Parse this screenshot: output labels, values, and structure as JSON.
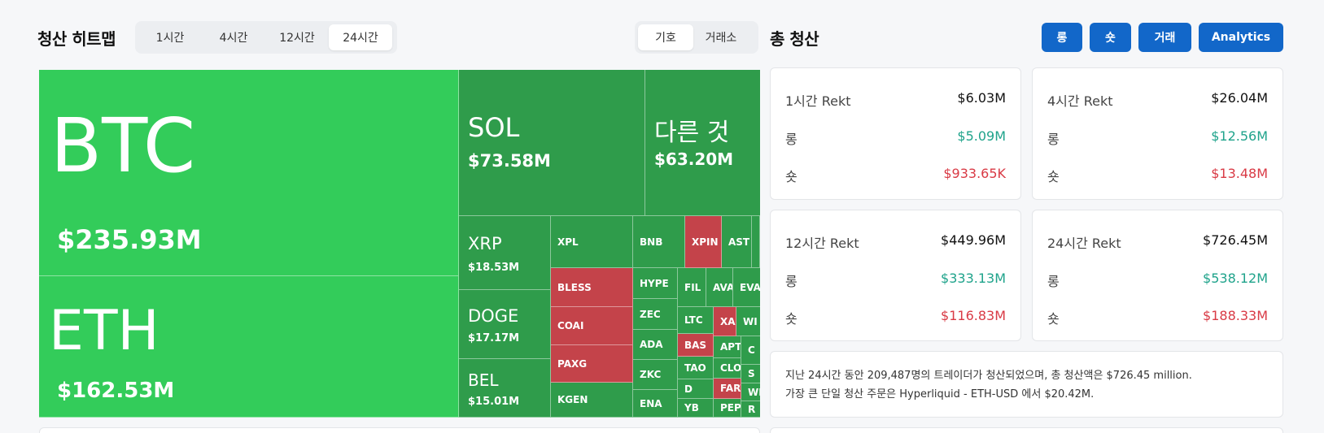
{
  "heatmap": {
    "title": "청산 히트맵",
    "time_options": [
      "1시간",
      "4시간",
      "12시간",
      "24시간"
    ],
    "kind_options": [
      "기호",
      "거래소"
    ]
  },
  "totals": {
    "title": "총 청산",
    "buttons": [
      "롱",
      "숏",
      "거래",
      "Analytics"
    ]
  },
  "tiles": {
    "btc": {
      "sym": "BTC",
      "val": "$235.93M"
    },
    "eth": {
      "sym": "ETH",
      "val": "$162.53M"
    },
    "sol": {
      "sym": "SOL",
      "val": "$73.58M"
    },
    "other": {
      "sym": "다른 것",
      "val": "$63.20M"
    },
    "xrp": {
      "sym": "XRP",
      "val": "$18.53M"
    },
    "doge": {
      "sym": "DOGE",
      "val": "$17.17M"
    },
    "bel": {
      "sym": "BEL",
      "val": "$15.01M"
    },
    "small": [
      "XPL",
      "BNB",
      "XPIN",
      "AST",
      "BLESS",
      "HYPE",
      "FIL",
      "AVA",
      "EVA",
      "COAI",
      "ZEC",
      "LTC",
      "XA",
      "WI",
      "PAXG",
      "ADA",
      "BAS",
      "APT",
      "C",
      "TAO",
      "CLO",
      "S",
      "FARTC",
      "WIF",
      "ZKC",
      "D",
      "KGEN",
      "ENA",
      "YB",
      "PEP",
      "R"
    ]
  },
  "cards": {
    "c1": {
      "title": "1시간 Rekt",
      "total": "$6.03M",
      "long_label": "롱",
      "long": "$5.09M",
      "short_label": "숏",
      "short": "$933.65K"
    },
    "c4": {
      "title": "4시간 Rekt",
      "total": "$26.04M",
      "long_label": "롱",
      "long": "$12.56M",
      "short_label": "숏",
      "short": "$13.48M"
    },
    "c12": {
      "title": "12시간 Rekt",
      "total": "$449.96M",
      "long_label": "롱",
      "long": "$333.13M",
      "short_label": "숏",
      "short": "$116.83M"
    },
    "c24": {
      "title": "24시간 Rekt",
      "total": "$726.45M",
      "long_label": "롱",
      "long": "$538.12M",
      "short_label": "숏",
      "short": "$188.33M"
    }
  },
  "summary": {
    "line1": "지난 24시간 동안 209,487명의 트레이더가 청산되었으며, 총 청산액은 $726.45 million.",
    "line2": "가장 큰 단일 청산 주문은 Hyperliquid - ETH-USD 에서 $20.42M."
  },
  "colors": {
    "positive": "#1fa38b",
    "negative": "#d93a45",
    "accent": "#1267c9",
    "tile_green": "#2f9c4b",
    "tile_bright": "#33cc5a",
    "tile_red": "#c4434a"
  }
}
